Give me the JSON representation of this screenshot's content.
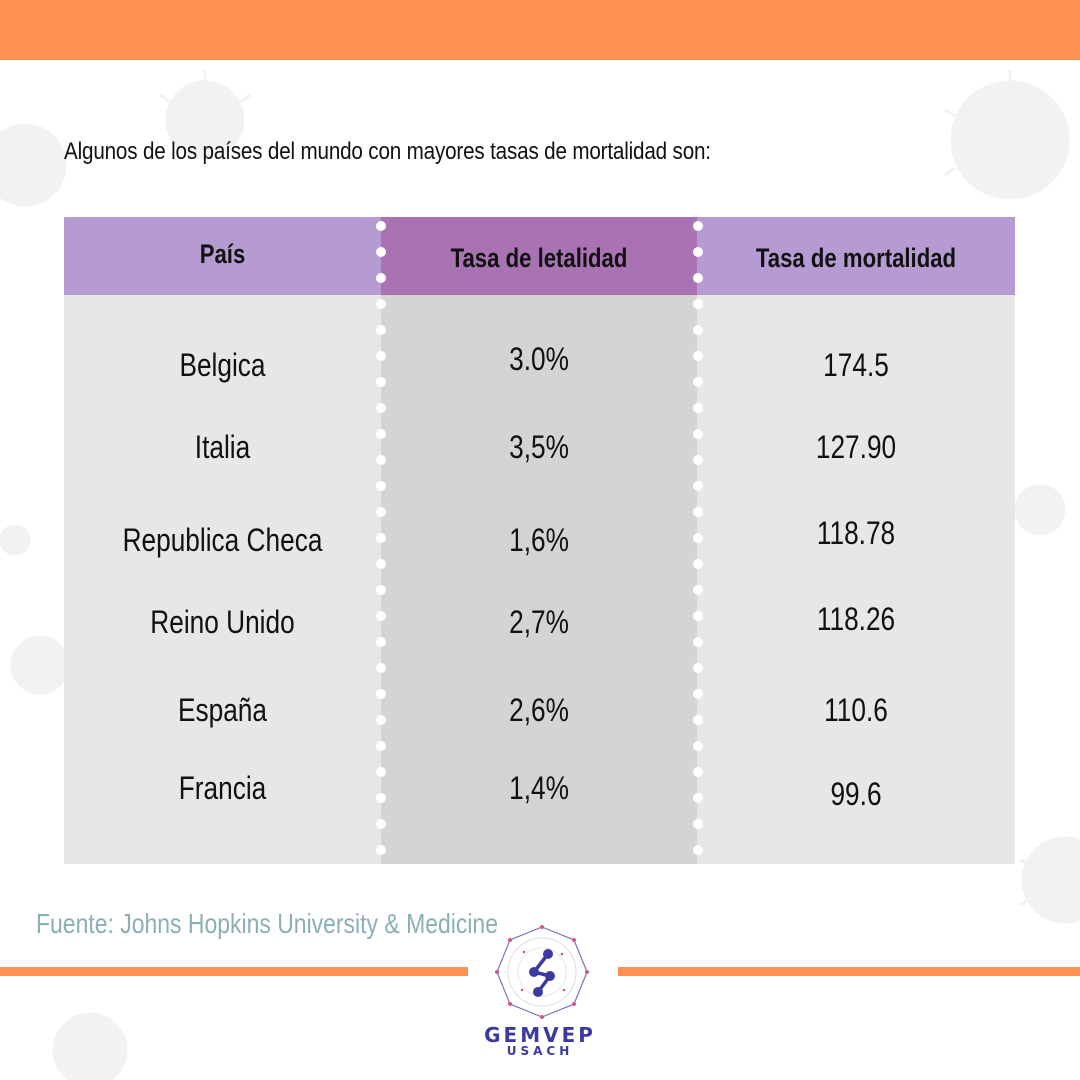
{
  "intro_text": "Algunos de los países del mundo con mayores tasas de mortalidad son:",
  "table": {
    "headers": [
      "País",
      "Tasa de letalidad",
      "Tasa de mortalidad"
    ],
    "rows": [
      [
        "Belgica",
        "3.0%",
        "174.5"
      ],
      [
        "Italia",
        "3,5%",
        "127.90"
      ],
      [
        "Republica Checa",
        "1,6%",
        "118.78"
      ],
      [
        "Reino Unido",
        "2,7%",
        "118.26"
      ],
      [
        "España",
        "2,6%",
        "110.6"
      ],
      [
        "Francia",
        "1,4%",
        "99.6"
      ]
    ]
  },
  "source_text": "Fuente: Johns Hopkins University & Medicine",
  "logo": {
    "name": "GEMVEP",
    "subtitle": "USACH"
  },
  "colors": {
    "accent": "#ff9150",
    "header_light": "#b69ad2",
    "header_dark": "#a973b3",
    "cell_light": "#e9e6e6",
    "cell_dark": "#d6d3d3",
    "source_text": "#8ab0b4",
    "logo": "#3b3aa0"
  }
}
